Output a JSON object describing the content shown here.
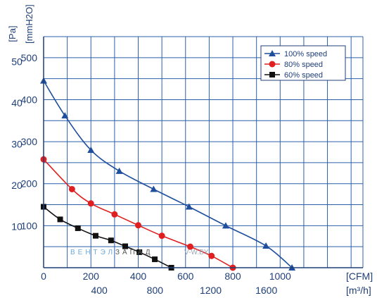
{
  "chart_data": {
    "type": "line",
    "y_axis_labels": {
      "pa": "[Pa]",
      "mmh2o": "[mmH2O]"
    },
    "x_axis_labels": {
      "cfm": "[CFM]",
      "m3h": "[m³/h]"
    },
    "x_unit": "CFM",
    "y_unit": "Pa",
    "xlim": [
      0,
      1350
    ],
    "ylim": [
      0,
      550
    ],
    "cfm_ticks": [
      "0",
      "200",
      "400",
      "600",
      "800",
      "1000"
    ],
    "m3h_ticks": [
      "400",
      "800",
      "1200",
      "1600"
    ],
    "pa_ticks": [
      "100",
      "200",
      "300",
      "400",
      "500"
    ],
    "mmh2o_ticks": [
      "10",
      "20",
      "30",
      "40",
      "50"
    ],
    "grid": true,
    "legend_position": "top-right",
    "series": [
      {
        "name": "100%  speed",
        "color": "#1f4f9c",
        "marker": "triangle",
        "x": [
          0,
          90,
          200,
          320,
          465,
          615,
          770,
          940,
          1050
        ],
        "y": [
          445,
          362,
          280,
          230,
          187,
          145,
          100,
          52,
          0
        ]
      },
      {
        "name": "80%  speed",
        "color": "#e02020",
        "marker": "circle",
        "x": [
          0,
          120,
          200,
          300,
          400,
          500,
          620,
          710,
          800
        ],
        "y": [
          258,
          187,
          153,
          127,
          101,
          76,
          50,
          28,
          0
        ]
      },
      {
        "name": "60%  speed",
        "color": "#111111",
        "marker": "square",
        "x": [
          0,
          70,
          145,
          220,
          285,
          345,
          405,
          470,
          540
        ],
        "y": [
          145,
          115,
          94,
          76,
          65,
          51,
          37,
          20,
          0
        ]
      }
    ]
  },
  "watermark": {
    "part1": "ВЕНТЭЛ",
    "part2": "ЗАПАД",
    "part3": "V-W.BY"
  }
}
